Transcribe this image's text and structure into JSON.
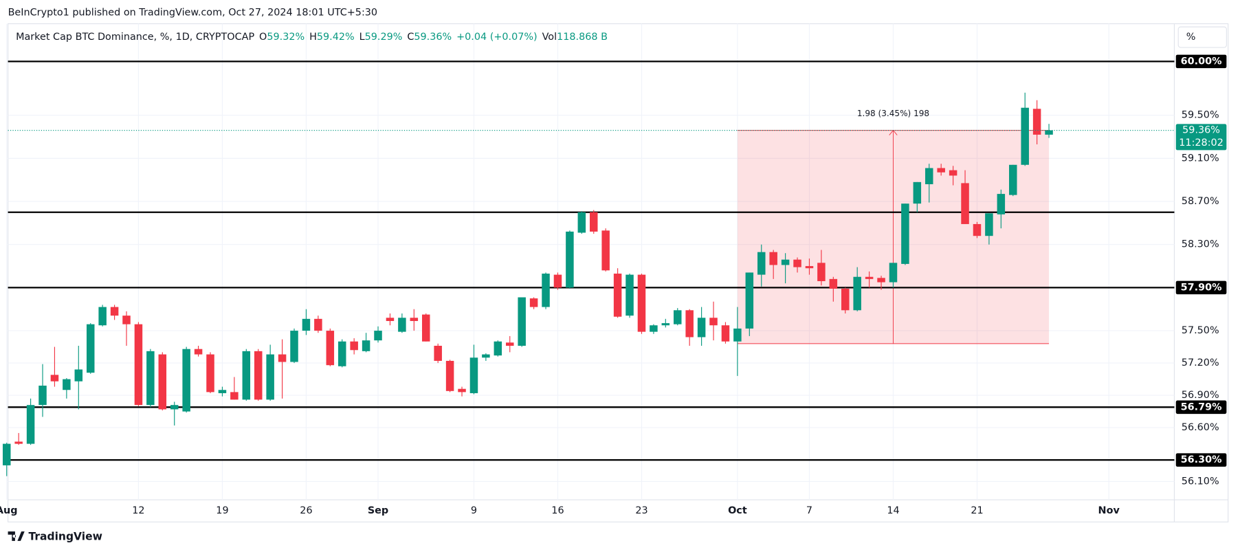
{
  "published": "BeInCrypto1 published on TradingView.com, Oct 27, 2024 18:01 UTC+5:30",
  "footer": "TradingView",
  "scale_button": "%",
  "chart_data": {
    "type": "candlestick",
    "header": {
      "symbol": "Market Cap BTC Dominance, %, 1D, CRYPTOCAP",
      "ohlc": [
        [
          "O",
          "59.32%"
        ],
        [
          "H",
          "59.42%"
        ],
        [
          "L",
          "59.29%"
        ],
        [
          "C",
          "59.36%"
        ]
      ],
      "change": "+0.04 (+0.07%)",
      "vol_label": "Vol",
      "vol": "118.868 B"
    },
    "up_color": "#089981",
    "down_color": "#f23645",
    "grid": true,
    "x": [
      "Aug 1",
      "Aug 2",
      "Aug 3",
      "Aug 4",
      "Aug 5",
      "Aug 6",
      "Aug 7",
      "Aug 8",
      "Aug 9",
      "Aug 10",
      "Aug 11",
      "Aug 12",
      "Aug 13",
      "Aug 14",
      "Aug 15",
      "Aug 16",
      "Aug 17",
      "Aug 18",
      "Aug 19",
      "Aug 20",
      "Aug 21",
      "Aug 22",
      "Aug 23",
      "Aug 24",
      "Aug 25",
      "Aug 26",
      "Aug 27",
      "Aug 28",
      "Aug 29",
      "Aug 30",
      "Aug 31",
      "Sep 1",
      "Sep 2",
      "Sep 3",
      "Sep 4",
      "Sep 5",
      "Sep 6",
      "Sep 7",
      "Sep 8",
      "Sep 9",
      "Sep 10",
      "Sep 11",
      "Sep 12",
      "Sep 13",
      "Sep 14",
      "Sep 15",
      "Sep 16",
      "Sep 17",
      "Sep 18",
      "Sep 19",
      "Sep 20",
      "Sep 21",
      "Sep 22",
      "Sep 23",
      "Sep 24",
      "Sep 25",
      "Sep 26",
      "Sep 27",
      "Sep 28",
      "Sep 29",
      "Sep 30",
      "Oct 1",
      "Oct 2",
      "Oct 3",
      "Oct 4",
      "Oct 5",
      "Oct 6",
      "Oct 7",
      "Oct 8",
      "Oct 9",
      "Oct 10",
      "Oct 11",
      "Oct 12",
      "Oct 13",
      "Oct 14",
      "Oct 15",
      "Oct 16",
      "Oct 17",
      "Oct 18",
      "Oct 19",
      "Oct 20",
      "Oct 21",
      "Oct 22",
      "Oct 23",
      "Oct 24",
      "Oct 25",
      "Oct 26",
      "Oct 27",
      "Oct 28",
      "Oct 29",
      "Oct 30",
      "Oct 31",
      "Nov 1",
      "Nov 2",
      "Nov 3",
      "Nov 4",
      "Nov 5",
      "Nov 6"
    ],
    "open": [
      56.25,
      56.47,
      56.45,
      56.81,
      57.09,
      56.95,
      57.03,
      57.11,
      57.55,
      57.72,
      57.64,
      57.56,
      56.81,
      57.28,
      56.77,
      56.75,
      57.33,
      57.28,
      56.92,
      56.93,
      56.86,
      57.31,
      56.86,
      57.28,
      57.21,
      57.5,
      57.61,
      57.5,
      57.17,
      57.4,
      57.31,
      57.41,
      57.62,
      57.49,
      57.62,
      57.65,
      57.36,
      57.22,
      56.96,
      56.92,
      57.25,
      57.27,
      57.39,
      57.36,
      57.8,
      57.72,
      58.02,
      57.9,
      58.41,
      58.6,
      58.43,
      58.03,
      57.64,
      58.02,
      57.49,
      57.55,
      57.56,
      57.69,
      57.44,
      57.62,
      57.55,
      57.4,
      57.52,
      58.02,
      58.23,
      58.11,
      58.16,
      58.1,
      58.13,
      57.98,
      57.89,
      57.69,
      58.0,
      57.99,
      57.95,
      58.12,
      58.68,
      58.86,
      59.01,
      58.99,
      58.87,
      58.49,
      58.38,
      58.58,
      58.76,
      59.04,
      59.56,
      59.32,
      null,
      null,
      null,
      null,
      null,
      null,
      null,
      null,
      null,
      null
    ],
    "high": [
      56.46,
      56.55,
      56.87,
      57.19,
      57.35,
      57.06,
      57.36,
      57.57,
      57.74,
      57.74,
      57.68,
      57.58,
      57.33,
      57.3,
      56.84,
      57.35,
      57.36,
      57.3,
      56.98,
      57.07,
      57.33,
      57.33,
      57.37,
      57.42,
      57.52,
      57.7,
      57.64,
      57.52,
      57.42,
      57.43,
      57.48,
      57.54,
      57.66,
      57.66,
      57.7,
      57.66,
      57.38,
      57.23,
      56.98,
      57.37,
      57.29,
      57.41,
      57.45,
      57.81,
      57.81,
      58.04,
      58.04,
      58.43,
      58.61,
      58.62,
      58.45,
      58.08,
      58.03,
      58.03,
      57.56,
      57.61,
      57.71,
      57.7,
      57.72,
      57.77,
      57.58,
      57.72,
      58.04,
      58.3,
      58.25,
      58.22,
      58.18,
      58.17,
      58.25,
      58.0,
      57.9,
      58.09,
      58.05,
      58.01,
      58.13,
      58.68,
      58.88,
      59.05,
      59.05,
      59.03,
      58.99,
      58.51,
      58.59,
      58.81,
      59.04,
      59.71,
      59.64,
      59.42,
      null,
      null,
      null,
      null,
      null,
      null,
      null,
      null,
      null,
      null
    ],
    "low": [
      56.15,
      56.44,
      56.44,
      56.7,
      56.98,
      56.87,
      56.77,
      57.1,
      57.54,
      57.6,
      57.36,
      56.8,
      56.79,
      56.76,
      56.62,
      56.74,
      57.26,
      56.92,
      56.89,
      56.86,
      56.85,
      56.85,
      56.85,
      56.87,
      57.2,
      57.46,
      57.48,
      57.17,
      57.16,
      57.28,
      57.3,
      57.39,
      57.55,
      57.48,
      57.5,
      57.4,
      57.2,
      56.93,
      56.89,
      56.91,
      57.22,
      57.26,
      57.3,
      57.35,
      57.7,
      57.7,
      57.88,
      57.89,
      58.4,
      58.4,
      58.05,
      57.62,
      57.62,
      57.47,
      57.47,
      57.53,
      57.55,
      57.36,
      57.36,
      57.41,
      57.38,
      57.08,
      57.45,
      57.91,
      57.98,
      57.94,
      58.04,
      58.02,
      57.92,
      57.77,
      57.66,
      57.68,
      57.9,
      57.88,
      57.9,
      58.11,
      58.6,
      58.69,
      58.94,
      58.85,
      58.49,
      58.36,
      58.3,
      58.45,
      58.75,
      59.03,
      59.23,
      59.29,
      null,
      null,
      null,
      null,
      null,
      null,
      null,
      null,
      null,
      null
    ],
    "close": [
      56.45,
      56.45,
      56.81,
      56.99,
      57.03,
      57.05,
      57.14,
      57.56,
      57.72,
      57.64,
      57.56,
      56.81,
      57.31,
      56.77,
      56.81,
      57.33,
      57.28,
      56.93,
      56.95,
      56.86,
      57.31,
      56.86,
      57.28,
      57.21,
      57.5,
      57.61,
      57.5,
      57.18,
      57.4,
      57.32,
      57.41,
      57.5,
      57.59,
      57.62,
      57.59,
      57.4,
      57.22,
      56.94,
      56.93,
      57.25,
      57.28,
      57.4,
      57.36,
      57.81,
      57.72,
      58.03,
      57.9,
      58.42,
      58.6,
      58.42,
      58.06,
      57.63,
      58.02,
      57.49,
      57.55,
      57.57,
      57.69,
      57.44,
      57.62,
      57.55,
      57.4,
      57.52,
      58.04,
      58.23,
      58.11,
      58.16,
      58.09,
      58.08,
      57.96,
      57.89,
      57.69,
      58.0,
      57.98,
      57.95,
      58.13,
      58.68,
      58.88,
      59.01,
      58.97,
      58.94,
      58.49,
      58.38,
      58.59,
      58.77,
      59.04,
      59.57,
      59.32,
      59.36,
      null,
      null,
      null,
      null,
      null,
      null,
      null,
      null,
      null,
      null
    ],
    "ylim": [
      55.93,
      60.35
    ],
    "yticks": [
      {
        "value": 56.1,
        "label": "56.10%"
      },
      {
        "value": 56.6,
        "label": "56.60%"
      },
      {
        "value": 56.9,
        "label": "56.90%"
      },
      {
        "value": 57.2,
        "label": "57.20%"
      },
      {
        "value": 57.5,
        "label": "57.50%"
      },
      {
        "value": 58.3,
        "label": "58.30%"
      },
      {
        "value": 58.7,
        "label": "58.70%"
      },
      {
        "value": 59.1,
        "label": "59.10%"
      },
      {
        "value": 59.5,
        "label": "59.50%"
      }
    ],
    "xticks": [
      {
        "value": "Aug 1",
        "label": "Aug"
      },
      {
        "value": "Aug 12",
        "label": "12"
      },
      {
        "value": "Aug 19",
        "label": "19"
      },
      {
        "value": "Aug 26",
        "label": "26"
      },
      {
        "value": "Sep 1",
        "label": "Sep"
      },
      {
        "value": "Sep 9",
        "label": "9"
      },
      {
        "value": "Sep 16",
        "label": "16"
      },
      {
        "value": "Sep 23",
        "label": "23"
      },
      {
        "value": "Oct 1",
        "label": "Oct"
      },
      {
        "value": "Oct 7",
        "label": "7"
      },
      {
        "value": "Oct 14",
        "label": "14"
      },
      {
        "value": "Oct 21",
        "label": "21"
      },
      {
        "value": "Nov 1",
        "label": "Nov"
      }
    ],
    "hlines": [
      {
        "value": 60.0,
        "label": "60.00%"
      },
      {
        "value": 58.6
      },
      {
        "value": 57.9,
        "label": "57.90%"
      },
      {
        "value": 56.79,
        "label": "56.79%"
      },
      {
        "value": 56.3,
        "label": "56.30%"
      }
    ],
    "last_price": {
      "value": 59.36,
      "label": "59.36%",
      "countdown": "11:28:02"
    },
    "measure": {
      "from": "Oct 1",
      "to": "Oct 27",
      "arrow_at": "Oct 14",
      "low": 57.38,
      "high": 59.36,
      "label": "1.98 (3.45%) 198"
    }
  }
}
